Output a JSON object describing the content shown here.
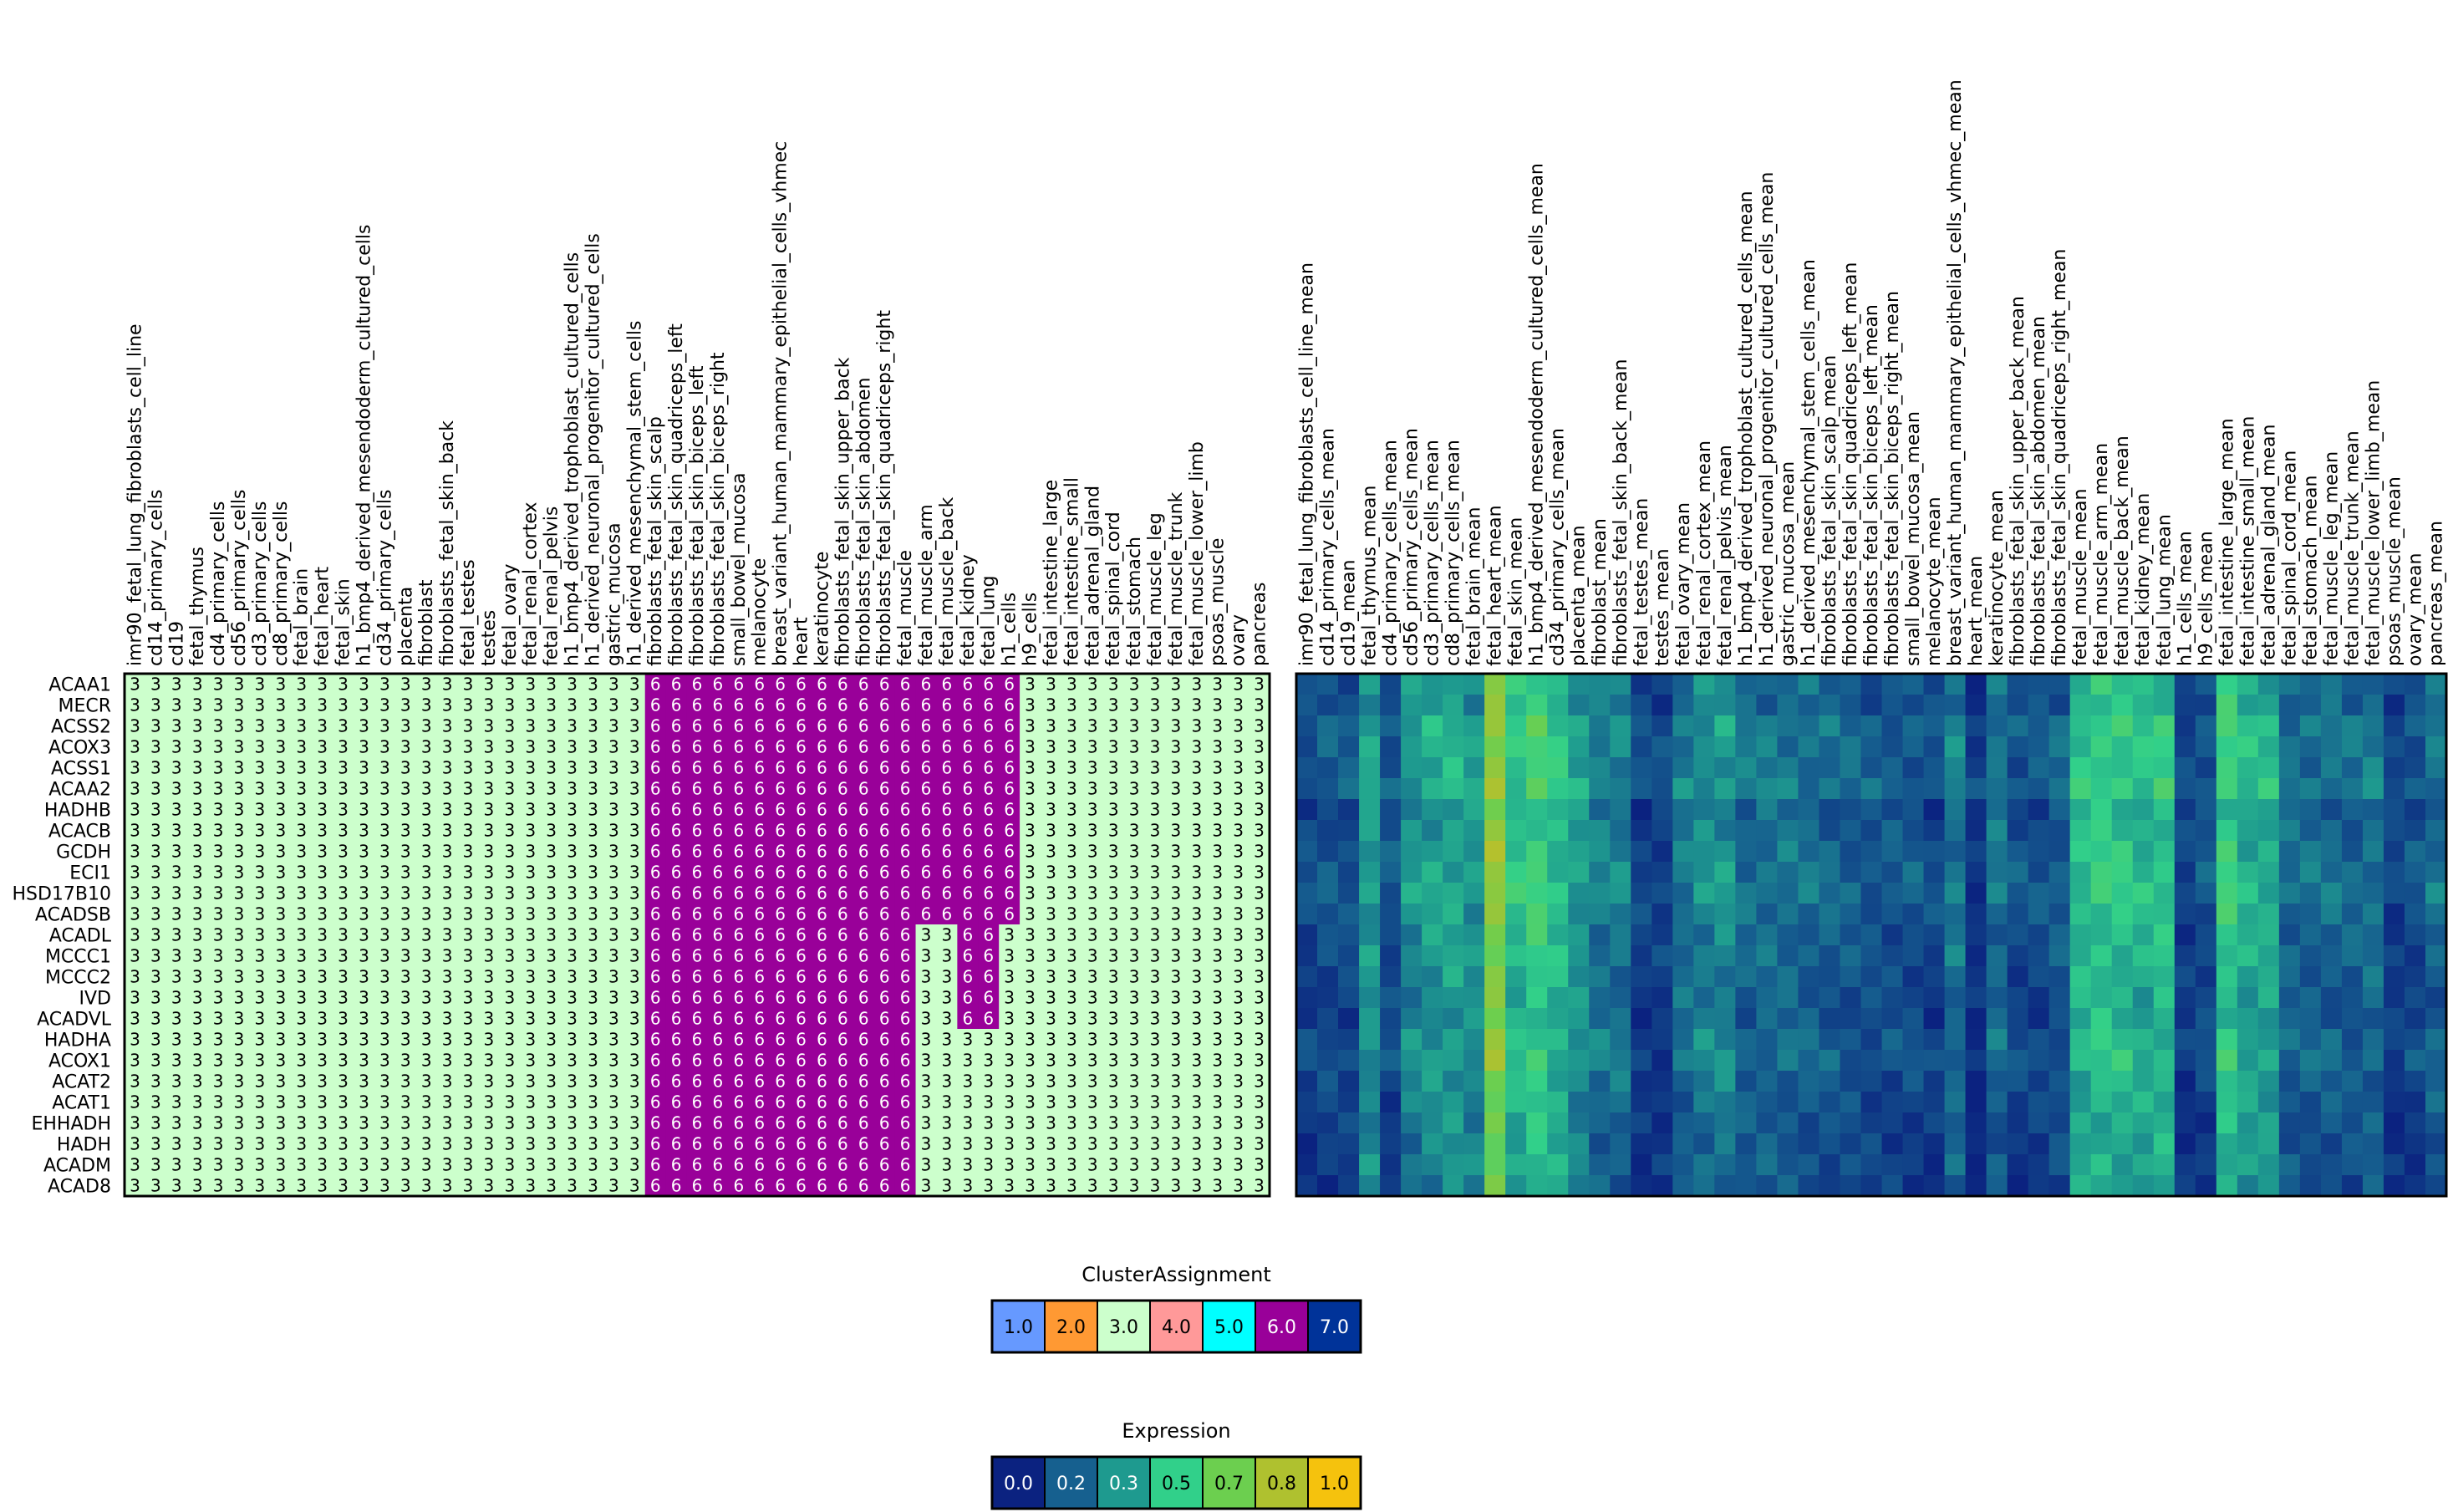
{
  "chart_data": {
    "type": "heatmap",
    "row_labels": [
      "ACAA1",
      "MECR",
      "ACSS2",
      "ACOX3",
      "ACSS1",
      "ACAA2",
      "HADHB",
      "ACACB",
      "GCDH",
      "ECI1",
      "HSD17B10",
      "ACADSB",
      "ACADL",
      "MCCC1",
      "MCCC2",
      "IVD",
      "ACADVL",
      "HADHA",
      "ACOX1",
      "ACAT2",
      "ACAT1",
      "EHHADH",
      "HADH",
      "ACADM",
      "ACAD8"
    ],
    "cluster_heatmap": {
      "columns": [
        "imr90_fetal_lung_fibroblasts_cell_line",
        "cd14_primary_cells",
        "cd19",
        "fetal_thymus",
        "cd4_primary_cells",
        "cd56_primary_cells",
        "cd3_primary_cells",
        "cd8_primary_cells",
        "fetal_brain",
        "fetal_heart",
        "fetal_skin",
        "h1_bmp4_derived_mesendoderm_cultured_cells",
        "cd34_primary_cells",
        "placenta",
        "fibroblast",
        "fibroblasts_fetal_skin_back",
        "fetal_testes",
        "testes",
        "fetal_ovary",
        "fetal_renal_cortex",
        "fetal_renal_pelvis",
        "h1_bmp4_derived_trophoblast_cultured_cells",
        "h1_derived_neuronal_progenitor_cultured_cells",
        "gastric_mucosa",
        "h1_derived_mesenchymal_stem_cells",
        "fibroblasts_fetal_skin_scalp",
        "fibroblasts_fetal_skin_quadriceps_left",
        "fibroblasts_fetal_skin_biceps_left",
        "fibroblasts_fetal_skin_biceps_right",
        "small_bowel_mucosa",
        "melanocyte",
        "breast_variant_human_mammary_epithelial_cells_vhmec",
        "heart",
        "keratinocyte",
        "fibroblasts_fetal_skin_upper_back",
        "fibroblasts_fetal_skin_abdomen",
        "fibroblasts_fetal_skin_quadriceps_right",
        "fetal_muscle",
        "fetal_muscle_arm",
        "fetal_muscle_back",
        "fetal_kidney",
        "fetal_lung",
        "h1_cells",
        "h9_cells",
        "fetal_intestine_large",
        "fetal_intestine_small",
        "fetal_adrenal_gland",
        "fetal_spinal_cord",
        "fetal_stomach",
        "fetal_muscle_leg",
        "fetal_muscle_trunk",
        "fetal_muscle_lower_limb",
        "psoas_muscle",
        "ovary",
        "pancreas"
      ],
      "cluster_block_start_col": 25,
      "row_cluster_end_col": [
        42,
        42,
        42,
        42,
        42,
        42,
        42,
        42,
        42,
        42,
        42,
        42,
        37,
        37,
        37,
        37,
        37,
        37,
        37,
        37,
        37,
        37,
        37,
        37,
        37
      ],
      "row_extra_six_cols": [
        [],
        [],
        [],
        [],
        [],
        [],
        [],
        [],
        [],
        [],
        [],
        [],
        [
          40,
          41
        ],
        [
          40,
          41
        ],
        [
          40,
          41
        ],
        [
          40,
          41
        ],
        [
          40,
          41
        ],
        [],
        [],
        [],
        [],
        [],
        [],
        [],
        []
      ],
      "background_value": 3,
      "cluster_value": 6
    },
    "expression_heatmap": {
      "columns": [
        "imr90_fetal_lung_fibroblasts_cell_line_mean",
        "cd14_primary_cells_mean",
        "cd19_mean",
        "fetal_thymus_mean",
        "cd4_primary_cells_mean",
        "cd56_primary_cells_mean",
        "cd3_primary_cells_mean",
        "cd8_primary_cells_mean",
        "fetal_brain_mean",
        "fetal_heart_mean",
        "fetal_skin_mean",
        "h1_bmp4_derived_mesendoderm_cultured_cells_mean",
        "cd34_primary_cells_mean",
        "placenta_mean",
        "fibroblast_mean",
        "fibroblasts_fetal_skin_back_mean",
        "fetal_testes_mean",
        "testes_mean",
        "fetal_ovary_mean",
        "fetal_renal_cortex_mean",
        "fetal_renal_pelvis_mean",
        "h1_bmp4_derived_trophoblast_cultured_cells_mean",
        "h1_derived_neuronal_progenitor_cultured_cells_mean",
        "gastric_mucosa_mean",
        "h1_derived_mesenchymal_stem_cells_mean",
        "fibroblasts_fetal_skin_scalp_mean",
        "fibroblasts_fetal_skin_quadriceps_left_mean",
        "fibroblasts_fetal_skin_biceps_left_mean",
        "fibroblasts_fetal_skin_biceps_right_mean",
        "small_bowel_mucosa_mean",
        "melanocyte_mean",
        "breast_variant_human_mammary_epithelial_cells_vhmec_mean",
        "heart_mean",
        "keratinocyte_mean",
        "fibroblasts_fetal_skin_upper_back_mean",
        "fibroblasts_fetal_skin_abdomen_mean",
        "fibroblasts_fetal_skin_quadriceps_right_mean",
        "fetal_muscle_mean",
        "fetal_muscle_arm_mean",
        "fetal_muscle_back_mean",
        "fetal_kidney_mean",
        "fetal_lung_mean",
        "h1_cells_mean",
        "h9_cells_mean",
        "fetal_intestine_large_mean",
        "fetal_intestine_small_mean",
        "fetal_adrenal_gland_mean",
        "fetal_spinal_cord_mean",
        "fetal_stomach_mean",
        "fetal_muscle_leg_mean",
        "fetal_muscle_trunk_mean",
        "fetal_muscle_lower_limb_mean",
        "psoas_muscle_mean",
        "ovary_mean",
        "pancreas_mean"
      ],
      "column_profile": [
        0.12,
        0.15,
        0.14,
        0.35,
        0.15,
        0.32,
        0.36,
        0.38,
        0.34,
        0.72,
        0.45,
        0.52,
        0.44,
        0.35,
        0.27,
        0.27,
        0.1,
        0.1,
        0.25,
        0.3,
        0.32,
        0.22,
        0.24,
        0.24,
        0.22,
        0.2,
        0.18,
        0.16,
        0.16,
        0.16,
        0.12,
        0.25,
        0.06,
        0.24,
        0.14,
        0.14,
        0.18,
        0.44,
        0.48,
        0.46,
        0.42,
        0.46,
        0.1,
        0.15,
        0.5,
        0.4,
        0.4,
        0.22,
        0.22,
        0.22,
        0.2,
        0.24,
        0.1,
        0.14,
        0.22
      ],
      "row_profile": [
        0.0,
        -0.02,
        0.04,
        0.03,
        0.02,
        0.05,
        -0.03,
        -0.01,
        0.01,
        0.02,
        0.03,
        0.0,
        -0.02,
        -0.01,
        -0.03,
        -0.04,
        -0.05,
        -0.01,
        0.0,
        -0.04,
        -0.05,
        -0.06,
        -0.07,
        -0.05,
        -0.08
      ]
    },
    "legends": [
      {
        "title": "ClusterAssignment",
        "labels": [
          "1.0",
          "2.0",
          "3.0",
          "4.0",
          "5.0",
          "6.0",
          "7.0"
        ],
        "colors": [
          "#6699ff",
          "#ff9933",
          "#ccffcc",
          "#ff9999",
          "#00ffff",
          "#990099",
          "#003399"
        ]
      },
      {
        "title": "Expression",
        "labels": [
          "0.0",
          "0.2",
          "0.3",
          "0.5",
          "0.7",
          "0.8",
          "1.0"
        ],
        "colors": [
          "#0b2280",
          "#16608f",
          "#1e9a8f",
          "#31d08a",
          "#6ccf4f",
          "#afc12f",
          "#f5c20d"
        ]
      }
    ],
    "colormap": {
      "cluster": {
        "3": "#ccffcc",
        "6": "#990099"
      },
      "expression_stops": [
        [
          0.0,
          "#0b2280"
        ],
        [
          0.2,
          "#16608f"
        ],
        [
          0.35,
          "#1e9a8f"
        ],
        [
          0.5,
          "#31d08a"
        ],
        [
          0.65,
          "#6ccf4f"
        ],
        [
          0.8,
          "#afc12f"
        ],
        [
          1.0,
          "#f5c20d"
        ]
      ]
    }
  }
}
